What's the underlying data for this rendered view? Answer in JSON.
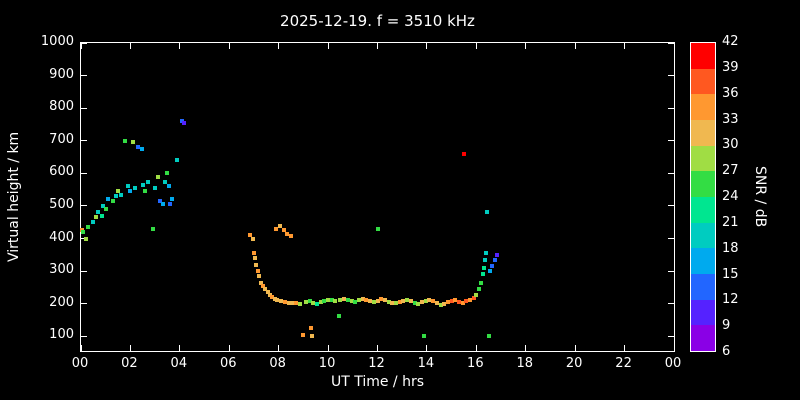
{
  "title": "2025-12-19. f = 3510 kHz",
  "axes": {
    "xlabel": "UT Time / hrs",
    "ylabel": "Virtual height / km",
    "x_tick_values": [
      0,
      2,
      4,
      6,
      8,
      10,
      12,
      14,
      16,
      18,
      20,
      22,
      24
    ],
    "x_tick_labels": [
      "00",
      "02",
      "04",
      "06",
      "08",
      "10",
      "12",
      "14",
      "16",
      "18",
      "20",
      "22",
      "00"
    ],
    "y_tick_values": [
      100,
      200,
      300,
      400,
      500,
      600,
      700,
      800,
      900,
      1000
    ],
    "xlim": [
      0,
      24
    ],
    "ylim": [
      55,
      1000
    ]
  },
  "colorbar": {
    "label": "SNR / dB",
    "min": 6,
    "max": 42,
    "step": 3,
    "tick_values": [
      42,
      39,
      36,
      33,
      30,
      27,
      24,
      21,
      18,
      15,
      12,
      9,
      6
    ],
    "segment_colors_bottom_to_top": [
      "#8a00e6",
      "#5522ff",
      "#2266ff",
      "#00aaee",
      "#00ccc0",
      "#00e690",
      "#33dd44",
      "#a0dd44",
      "#f0b850",
      "#ff9830",
      "#ff5820",
      "#ff0000"
    ]
  },
  "chart_data": {
    "type": "scatter",
    "title": "2025-12-19. f = 3510 kHz",
    "xlabel": "UT Time / hrs",
    "ylabel": "Virtual height / km",
    "zlabel": "SNR / dB",
    "xlim": [
      0,
      24
    ],
    "ylim": [
      55,
      1000
    ],
    "zlim": [
      6,
      42
    ],
    "grid": false,
    "points_format": "[ut_hours, virtual_height_km, snr_db]",
    "points": [
      [
        0.05,
        425,
        33
      ],
      [
        0.1,
        420,
        24
      ],
      [
        0.2,
        400,
        27
      ],
      [
        0.3,
        435,
        24
      ],
      [
        0.5,
        450,
        18
      ],
      [
        0.6,
        465,
        27
      ],
      [
        0.7,
        480,
        18
      ],
      [
        0.85,
        470,
        21
      ],
      [
        0.9,
        500,
        18
      ],
      [
        1.0,
        490,
        24
      ],
      [
        1.1,
        520,
        15
      ],
      [
        1.3,
        515,
        24
      ],
      [
        1.4,
        530,
        18
      ],
      [
        1.5,
        545,
        27
      ],
      [
        1.6,
        535,
        18
      ],
      [
        1.8,
        700,
        24
      ],
      [
        1.9,
        560,
        18
      ],
      [
        2.0,
        545,
        15
      ],
      [
        2.1,
        695,
        27
      ],
      [
        2.2,
        555,
        18
      ],
      [
        2.3,
        680,
        12
      ],
      [
        2.45,
        675,
        15
      ],
      [
        2.5,
        565,
        18
      ],
      [
        2.6,
        545,
        24
      ],
      [
        2.7,
        575,
        18
      ],
      [
        2.9,
        430,
        24
      ],
      [
        3.0,
        555,
        18
      ],
      [
        3.1,
        590,
        27
      ],
      [
        3.2,
        515,
        12
      ],
      [
        3.3,
        505,
        15
      ],
      [
        3.4,
        575,
        18
      ],
      [
        3.5,
        600,
        24
      ],
      [
        3.55,
        560,
        15
      ],
      [
        3.6,
        505,
        12
      ],
      [
        3.7,
        520,
        15
      ],
      [
        3.9,
        640,
        18
      ],
      [
        4.1,
        760,
        12
      ],
      [
        4.15,
        755,
        9
      ],
      [
        6.85,
        410,
        33
      ],
      [
        6.95,
        400,
        30
      ],
      [
        7.0,
        355,
        33
      ],
      [
        7.05,
        340,
        30
      ],
      [
        7.1,
        320,
        30
      ],
      [
        7.15,
        300,
        33
      ],
      [
        7.2,
        285,
        30
      ],
      [
        7.3,
        265,
        30
      ],
      [
        7.35,
        255,
        33
      ],
      [
        7.45,
        245,
        30
      ],
      [
        7.55,
        235,
        30
      ],
      [
        7.65,
        228,
        30
      ],
      [
        7.75,
        222,
        33
      ],
      [
        7.85,
        216,
        30
      ],
      [
        7.95,
        212,
        30
      ],
      [
        7.9,
        430,
        33
      ],
      [
        8.05,
        440,
        30
      ],
      [
        8.2,
        425,
        33
      ],
      [
        8.35,
        415,
        33
      ],
      [
        8.5,
        408,
        33
      ],
      [
        8.1,
        208,
        30
      ],
      [
        8.25,
        205,
        33
      ],
      [
        8.4,
        203,
        30
      ],
      [
        8.55,
        202,
        30
      ],
      [
        8.7,
        201,
        33
      ],
      [
        8.85,
        200,
        27
      ],
      [
        9.0,
        103,
        33
      ],
      [
        9.3,
        127,
        33
      ],
      [
        9.35,
        100,
        30
      ],
      [
        9.1,
        204,
        27
      ],
      [
        9.25,
        207,
        24
      ],
      [
        9.4,
        203,
        27
      ],
      [
        9.55,
        200,
        21
      ],
      [
        9.7,
        204,
        27
      ],
      [
        9.85,
        208,
        24
      ],
      [
        10.0,
        213,
        27
      ],
      [
        10.15,
        210,
        24
      ],
      [
        10.3,
        207,
        27
      ],
      [
        10.45,
        162,
        24
      ],
      [
        10.5,
        210,
        27
      ],
      [
        10.65,
        214,
        30
      ],
      [
        10.8,
        212,
        24
      ],
      [
        10.95,
        209,
        27
      ],
      [
        11.1,
        206,
        24
      ],
      [
        11.25,
        210,
        27
      ],
      [
        11.4,
        214,
        30
      ],
      [
        11.55,
        212,
        33
      ],
      [
        11.7,
        208,
        30
      ],
      [
        11.85,
        204,
        27
      ],
      [
        12.0,
        430,
        24
      ],
      [
        12.0,
        209,
        30
      ],
      [
        12.15,
        214,
        33
      ],
      [
        12.3,
        211,
        30
      ],
      [
        12.45,
        206,
        27
      ],
      [
        12.6,
        203,
        30
      ],
      [
        12.75,
        201,
        27
      ],
      [
        12.9,
        204,
        33
      ],
      [
        13.05,
        208,
        30
      ],
      [
        13.2,
        211,
        27
      ],
      [
        13.35,
        207,
        30
      ],
      [
        13.5,
        203,
        24
      ],
      [
        13.65,
        200,
        27
      ],
      [
        13.8,
        204,
        30
      ],
      [
        13.9,
        100,
        24
      ],
      [
        13.95,
        208,
        27
      ],
      [
        14.1,
        212,
        30
      ],
      [
        14.25,
        207,
        33
      ],
      [
        14.4,
        202,
        30
      ],
      [
        14.55,
        197,
        27
      ],
      [
        14.7,
        200,
        30
      ],
      [
        14.85,
        204,
        33
      ],
      [
        15.0,
        207,
        36
      ],
      [
        15.15,
        210,
        33
      ],
      [
        15.3,
        206,
        36
      ],
      [
        15.45,
        203,
        33
      ],
      [
        15.5,
        660,
        39
      ],
      [
        15.6,
        208,
        36
      ],
      [
        15.75,
        213,
        33
      ],
      [
        15.9,
        218,
        36
      ],
      [
        16.0,
        228,
        27
      ],
      [
        16.1,
        245,
        24
      ],
      [
        16.2,
        265,
        24
      ],
      [
        16.25,
        290,
        21
      ],
      [
        16.3,
        310,
        21
      ],
      [
        16.35,
        335,
        18
      ],
      [
        16.4,
        355,
        18
      ],
      [
        16.45,
        480,
        18
      ],
      [
        16.5,
        100,
        24
      ],
      [
        16.55,
        300,
        15
      ],
      [
        16.65,
        315,
        12
      ],
      [
        16.75,
        335,
        12
      ],
      [
        16.85,
        350,
        9
      ]
    ]
  }
}
